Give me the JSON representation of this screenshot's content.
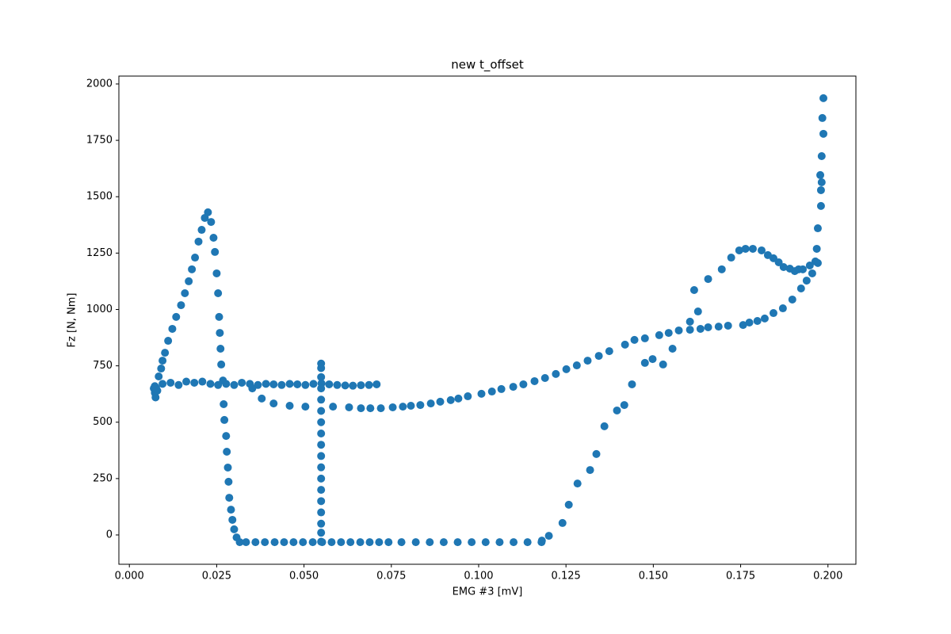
{
  "chart_data": {
    "type": "scatter",
    "title": "new t_offset",
    "xlabel": "EMG #3 [mV]",
    "ylabel": "Fz [N, Nm]",
    "color": "#1f77b4",
    "xlim": [
      -0.003,
      0.208
    ],
    "ylim": [
      -130,
      2035
    ],
    "xticks": [
      {
        "value": 0,
        "label": "0.000"
      },
      0.025,
      {
        "value": 0.05,
        "label": "0.050"
      },
      0.075,
      {
        "value": 0.1,
        "label": "0.100"
      },
      0.125,
      {
        "value": 0.15,
        "label": "0.150"
      },
      0.175,
      {
        "value": 0.2,
        "label": "0.200"
      }
    ],
    "yticks": [
      0,
      250,
      500,
      750,
      1000,
      1250,
      1500,
      1750,
      2000
    ],
    "x": [
      0.0073,
      0.0095,
      0.0118,
      0.0141,
      0.0163,
      0.0186,
      0.0209,
      0.0232,
      0.0254,
      0.0277,
      0.03,
      0.0322,
      0.0345,
      0.0368,
      0.0391,
      0.0413,
      0.0436,
      0.0459,
      0.0481,
      0.0504,
      0.0527,
      0.055,
      0.0572,
      0.0595,
      0.0618,
      0.064,
      0.0663,
      0.0686,
      0.0708,
      0.0073,
      0.0075,
      0.007,
      0.008,
      0.0077,
      0.0084,
      0.0091,
      0.0095,
      0.0102,
      0.0111,
      0.0123,
      0.0134,
      0.0148,
      0.0159,
      0.017,
      0.0179,
      0.0188,
      0.0198,
      0.0207,
      0.0216,
      0.0225,
      0.0234,
      0.0241,
      0.0245,
      0.025,
      0.0254,
      0.0257,
      0.0259,
      0.0261,
      0.0263,
      0.0268,
      0.027,
      0.0272,
      0.0277,
      0.0279,
      0.0282,
      0.0284,
      0.0286,
      0.0291,
      0.0295,
      0.03,
      0.0307,
      0.0316,
      0.0334,
      0.0361,
      0.0388,
      0.0416,
      0.0443,
      0.047,
      0.0497,
      0.0525,
      0.0552,
      0.0579,
      0.0606,
      0.0633,
      0.0661,
      0.0688,
      0.0715,
      0.0742,
      0.0779,
      0.082,
      0.086,
      0.09,
      0.094,
      0.098,
      0.102,
      0.106,
      0.11,
      0.114,
      0.118,
      0.0549,
      0.0549,
      0.0549,
      0.0549,
      0.0549,
      0.0549,
      0.0549,
      0.0549,
      0.0549,
      0.0549,
      0.0549,
      0.0549,
      0.0549,
      0.0549,
      0.0549,
      0.0549,
      0.0549,
      0.0549,
      0.0352,
      0.0379,
      0.0413,
      0.0459,
      0.0504,
      0.0583,
      0.0629,
      0.0663,
      0.069,
      0.072,
      0.0754,
      0.0783,
      0.0806,
      0.0833,
      0.0863,
      0.089,
      0.092,
      0.0942,
      0.0969,
      0.1008,
      0.1038,
      0.1065,
      0.1099,
      0.1128,
      0.116,
      0.119,
      0.1221,
      0.1251,
      0.1281,
      0.1312,
      0.1344,
      0.1374,
      0.1419,
      0.1446,
      0.1476,
      0.1517,
      0.1544,
      0.1573,
      0.1605,
      0.1635,
      0.1657,
      0.1687,
      0.1714,
      0.1757,
      0.1775,
      0.1798,
      0.1819,
      0.1844,
      0.1871,
      0.1898,
      0.1923,
      0.1939,
      0.1955,
      0.1971,
      0.1968,
      0.1971,
      0.198,
      0.198,
      0.1982,
      0.1978,
      0.1982,
      0.1987,
      0.1984,
      0.1987,
      0.1964,
      0.1948,
      0.1928,
      0.1916,
      0.1905,
      0.1891,
      0.1873,
      0.1859,
      0.1844,
      0.1828,
      0.181,
      0.1785,
      0.1764,
      0.1746,
      0.1723,
      0.1696,
      0.1657,
      0.1617,
      0.1628,
      0.1605,
      0.1555,
      0.1528,
      0.1498,
      0.1476,
      0.1439,
      0.1417,
      0.1396,
      0.136,
      0.1337,
      0.1319,
      0.1283,
      0.1258,
      0.124,
      0.1201,
      0.1181
    ],
    "y": [
      660,
      670,
      675,
      665,
      680,
      675,
      680,
      670,
      665,
      670,
      665,
      675,
      670,
      665,
      670,
      668,
      665,
      670,
      668,
      665,
      670,
      672,
      668,
      665,
      663,
      662,
      664,
      665,
      668,
      630,
      610,
      650,
      640,
      650,
      703,
      738,
      773,
      808,
      861,
      914,
      967,
      1019,
      1072,
      1125,
      1178,
      1230,
      1301,
      1353,
      1406,
      1431,
      1388,
      1318,
      1255,
      1160,
      1072,
      967,
      896,
      826,
      756,
      685,
      580,
      510,
      439,
      369,
      299,
      236,
      165,
      112,
      67,
      25,
      -11,
      -32,
      -32,
      -32,
      -32,
      -32,
      -32,
      -32,
      -32,
      -32,
      -32,
      -32,
      -32,
      -32,
      -32,
      -32,
      -32,
      -32,
      -32,
      -32,
      -32,
      -32,
      -32,
      -32,
      -32,
      -32,
      -32,
      -32,
      -32,
      -30,
      10,
      50,
      100,
      150,
      200,
      250,
      300,
      350,
      400,
      450,
      500,
      550,
      600,
      650,
      700,
      740,
      760,
      650,
      605,
      583,
      573,
      569,
      569,
      566,
      562,
      562,
      562,
      566,
      569,
      573,
      576,
      583,
      591,
      598,
      605,
      615,
      626,
      636,
      647,
      657,
      668,
      682,
      696,
      714,
      735,
      752,
      773,
      794,
      815,
      844,
      865,
      872,
      886,
      896,
      907,
      910,
      914,
      921,
      924,
      928,
      931,
      942,
      949,
      960,
      984,
      1005,
      1044,
      1093,
      1128,
      1160,
      1206,
      1269,
      1360,
      1459,
      1529,
      1564,
      1596,
      1680,
      1779,
      1849,
      1937,
      1213,
      1195,
      1178,
      1178,
      1170,
      1181,
      1188,
      1209,
      1227,
      1241,
      1262,
      1269,
      1269,
      1262,
      1230,
      1178,
      1135,
      1086,
      991,
      946,
      826,
      756,
      780,
      763,
      668,
      576,
      552,
      482,
      359,
      288,
      228,
      134,
      53,
      -4,
      -25
    ]
  }
}
